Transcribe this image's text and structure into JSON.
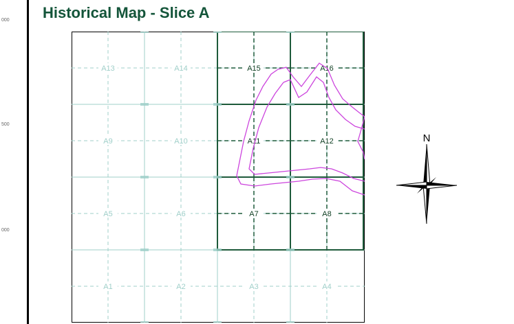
{
  "title": "Historical Map - Slice A",
  "side_ticks": [
    "000",
    "500",
    "000"
  ],
  "compass": {
    "north_label": "N"
  },
  "grid": {
    "rows": [
      [
        "A13",
        "A14",
        "A15",
        "A16"
      ],
      [
        "A9",
        "A10",
        "A11",
        "A12"
      ],
      [
        "A5",
        "A6",
        "A7",
        "A8"
      ],
      [
        "A1",
        "A2",
        "A3",
        "A4"
      ]
    ],
    "highlighted": [
      "A15",
      "A16",
      "A11",
      "A12",
      "A7",
      "A8"
    ]
  },
  "colors": {
    "title": "#14553a",
    "grid_faint": "#9fcfc9",
    "grid_highlight": "#1d5a3a",
    "contour": "#cc44dd",
    "border": "#000000"
  }
}
